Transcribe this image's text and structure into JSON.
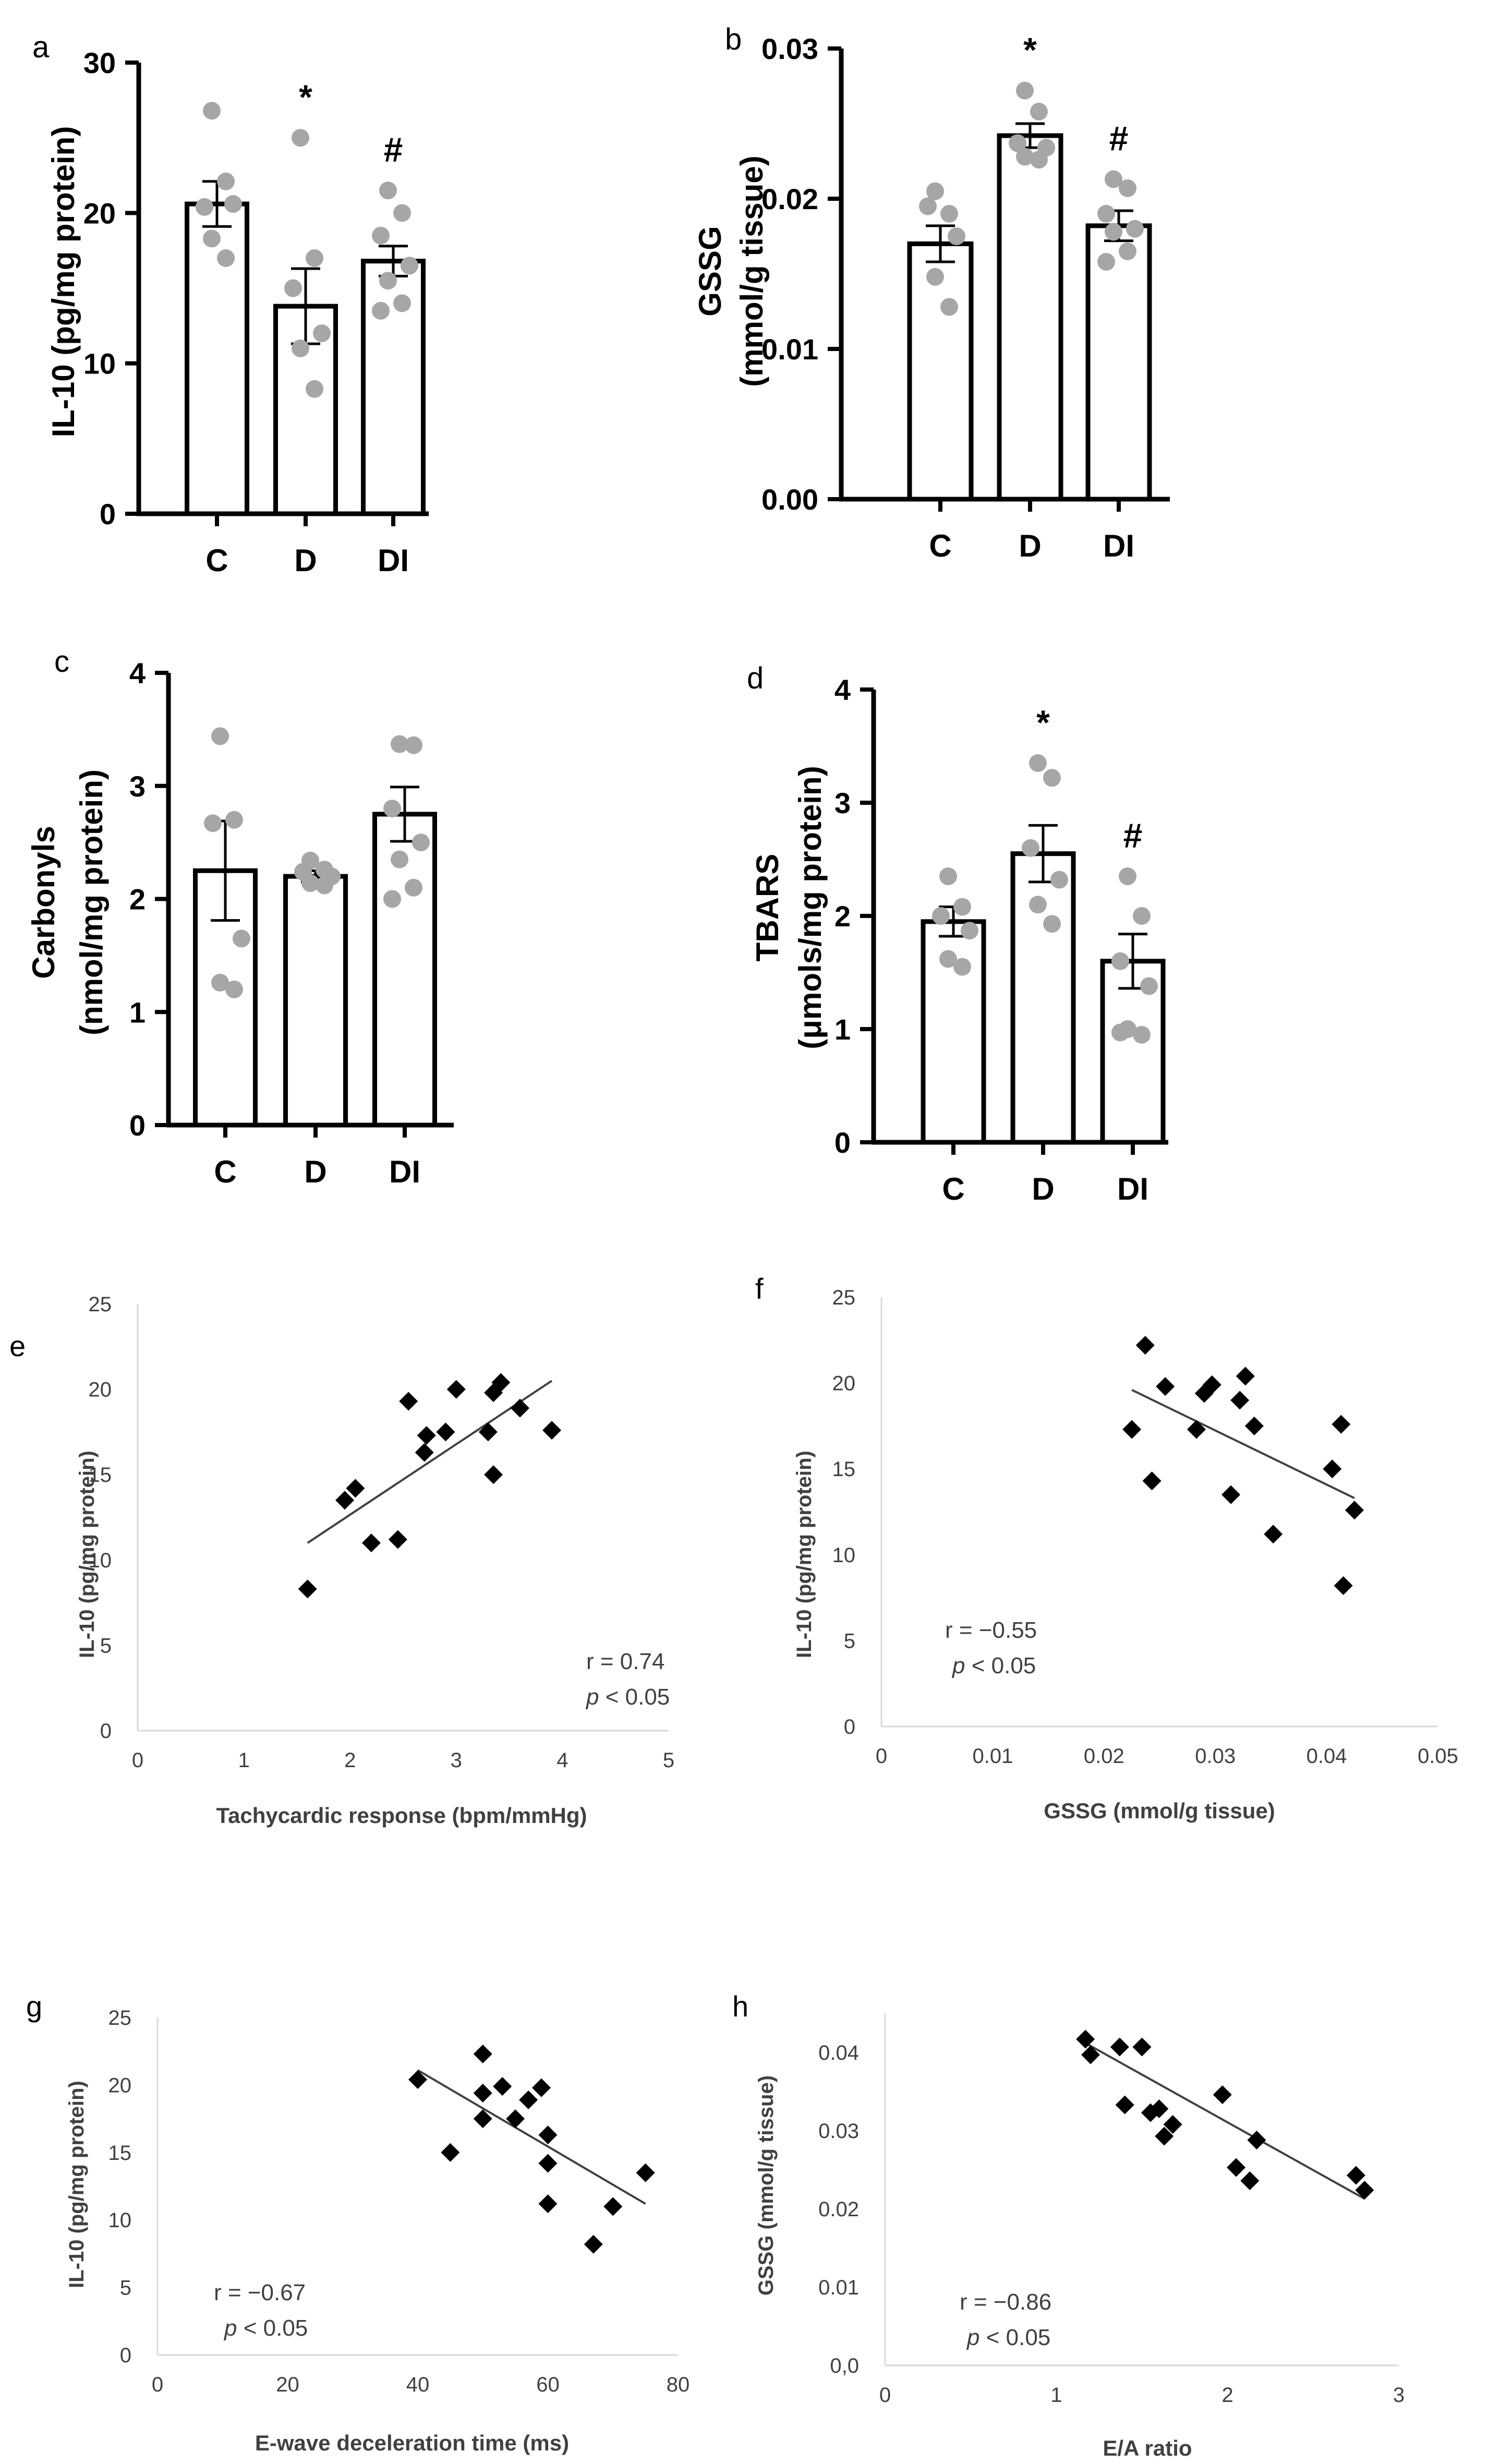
{
  "colors": {
    "axis": "#000000",
    "bar_fill": "#ffffff",
    "bar_stroke": "#000000",
    "dot": "#a6a6a6",
    "scatter_marker": "#000000",
    "trendline": "#404040",
    "scatter_axis": "#d9d9d9",
    "scatter_text": "#404040"
  },
  "chart_data": [
    {
      "panel": "a",
      "type": "bar",
      "ylabel": "IL-10 (pg/mg protein)",
      "categories": [
        "C",
        "D",
        "DI"
      ],
      "values": [
        20.6,
        13.8,
        16.8
      ],
      "sem": [
        1.5,
        2.5,
        1.0
      ],
      "significance": [
        "",
        "*",
        "#"
      ],
      "points": [
        [
          26.8,
          22.1,
          20.4,
          20.6,
          18.3,
          17.0
        ],
        [
          25.0,
          17.0,
          15.0,
          12.0,
          11.0,
          8.3
        ],
        [
          21.5,
          20.0,
          18.5,
          16.5,
          15.5,
          14.0,
          13.5
        ]
      ],
      "ylim": [
        0,
        30
      ],
      "yticks": [
        "0",
        "10",
        "20",
        "30"
      ]
    },
    {
      "panel": "b",
      "type": "bar",
      "ylabel": "GSSG",
      "ylabel2": "(mmol/g tissue)",
      "categories": [
        "C",
        "D",
        "DI"
      ],
      "values": [
        0.017,
        0.0242,
        0.0182
      ],
      "sem": [
        0.0012,
        0.0008,
        0.001
      ],
      "significance": [
        "",
        "*",
        "#"
      ],
      "points": [
        [
          0.0205,
          0.019,
          0.0195,
          0.0175,
          0.0148,
          0.0128
        ],
        [
          0.0272,
          0.0258,
          0.0237,
          0.0234,
          0.0228,
          0.0226
        ],
        [
          0.0213,
          0.0207,
          0.019,
          0.018,
          0.0178,
          0.0165,
          0.0158
        ]
      ],
      "ylim": [
        0,
        0.03
      ],
      "yticks": [
        "0.00",
        "0.01",
        "0.02",
        "0.03"
      ]
    },
    {
      "panel": "c",
      "type": "bar",
      "ylabel": "Carbonyls",
      "ylabel2": "(nmol/mg protein)",
      "categories": [
        "C",
        "D",
        "DI"
      ],
      "values": [
        2.25,
        2.2,
        2.75
      ],
      "sem": [
        0.44,
        0.05,
        0.24
      ],
      "significance": [
        "",
        "",
        ""
      ],
      "points": [
        [
          3.44,
          2.7,
          2.67,
          1.65,
          1.26,
          1.2
        ],
        [
          2.34,
          2.26,
          2.24,
          2.2,
          2.14,
          2.12
        ],
        [
          3.37,
          3.36,
          2.8,
          2.5,
          2.35,
          2.1,
          2.0
        ]
      ],
      "ylim": [
        0,
        4
      ],
      "yticks": [
        "0",
        "1",
        "2",
        "3",
        "4"
      ]
    },
    {
      "panel": "d",
      "type": "bar",
      "ylabel": "TBARS",
      "ylabel2": "(μmols/mg protein)",
      "categories": [
        "C",
        "D",
        "DI"
      ],
      "values": [
        1.95,
        2.55,
        1.6
      ],
      "sem": [
        0.13,
        0.25,
        0.24
      ],
      "significance": [
        "",
        "*",
        "#"
      ],
      "points": [
        [
          2.35,
          2.08,
          2.0,
          1.87,
          1.62,
          1.55
        ],
        [
          3.35,
          3.22,
          2.6,
          2.32,
          2.1,
          1.93
        ],
        [
          2.35,
          2.0,
          1.6,
          1.38,
          1.0,
          0.95,
          0.97
        ]
      ],
      "ylim": [
        0,
        4
      ],
      "yticks": [
        "0",
        "1",
        "2",
        "3",
        "4"
      ]
    },
    {
      "panel": "e",
      "type": "scatter",
      "xlabel": "Tachycardic response (bpm/mmHg)",
      "ylabel": "IL-10 (pg/mg protein)",
      "xlim": [
        0,
        5
      ],
      "ylim": [
        0,
        25
      ],
      "xticks": [
        "0",
        "1",
        "2",
        "3",
        "4",
        "5"
      ],
      "yticks": [
        "0",
        "5",
        "10",
        "15",
        "20",
        "25"
      ],
      "x": [
        1.6,
        1.95,
        2.05,
        2.2,
        2.45,
        2.55,
        2.7,
        2.72,
        2.9,
        3.0,
        3.3,
        3.35,
        3.35,
        3.42,
        3.6,
        3.9
      ],
      "y": [
        8.3,
        13.5,
        14.2,
        11.0,
        11.2,
        19.3,
        16.3,
        17.3,
        17.5,
        20.0,
        17.5,
        15.0,
        19.8,
        20.4,
        18.9,
        17.6
      ],
      "trendline": [
        [
          1.6,
          11.0
        ],
        [
          3.9,
          20.5
        ]
      ],
      "annotation": [
        "r = 0.74",
        "p < 0.05"
      ]
    },
    {
      "panel": "f",
      "type": "scatter",
      "xlabel": "GSSG (mmol/g tissue)",
      "ylabel": "IL-10 (pg/mg protein)",
      "xlim": [
        0,
        0.05
      ],
      "ylim": [
        0,
        25
      ],
      "xticks": [
        "0",
        "0.01",
        "0.02",
        "0.03",
        "0.04",
        "0.05"
      ],
      "yticks": [
        "0",
        "5",
        "10",
        "15",
        "20",
        "25"
      ],
      "x": [
        0.0225,
        0.0237,
        0.0243,
        0.0255,
        0.0283,
        0.029,
        0.0297,
        0.0314,
        0.0322,
        0.0327,
        0.0335,
        0.0352,
        0.0405,
        0.0413,
        0.0415,
        0.0425
      ],
      "y": [
        17.3,
        22.2,
        14.3,
        19.8,
        17.3,
        19.4,
        19.9,
        13.5,
        19.0,
        20.4,
        17.5,
        11.2,
        15.0,
        17.6,
        8.2,
        12.6
      ],
      "trendline": [
        [
          0.0225,
          19.6
        ],
        [
          0.0425,
          13.3
        ]
      ],
      "annotation": [
        "r = −0.55",
        "p < 0.05"
      ]
    },
    {
      "panel": "g",
      "type": "scatter",
      "xlabel": "E-wave deceleration time (ms)",
      "ylabel": "IL-10 (pg/mg protein)",
      "xlim": [
        0,
        80
      ],
      "ylim": [
        0,
        25
      ],
      "xticks": [
        "0",
        "20",
        "40",
        "60",
        "80"
      ],
      "yticks": [
        "0",
        "5",
        "10",
        "15",
        "20",
        "25"
      ],
      "x": [
        40,
        45,
        50,
        50,
        50,
        53,
        55,
        57,
        59,
        60,
        60,
        60,
        67,
        70,
        75
      ],
      "y": [
        20.4,
        15.0,
        22.3,
        19.4,
        17.5,
        19.9,
        17.5,
        18.9,
        19.8,
        16.3,
        14.2,
        11.2,
        8.2,
        11.0,
        13.5
      ],
      "trendline": [
        [
          40,
          21.1
        ],
        [
          75,
          11.2
        ]
      ],
      "annotation": [
        "r =  −0.67",
        "p < 0.05"
      ]
    },
    {
      "panel": "h",
      "type": "scatter",
      "xlabel": "E/A ratio",
      "ylabel": "GSSG (mmol/g tissue)",
      "xlim": [
        0,
        3
      ],
      "ylim": [
        0,
        0.045
      ],
      "xticks": [
        "0",
        "1",
        "2",
        "3"
      ],
      "yticks": [
        "0,0",
        "0.01",
        "0.02",
        "0.03",
        "0.04"
      ],
      "x": [
        1.17,
        1.2,
        1.37,
        1.4,
        1.5,
        1.55,
        1.6,
        1.63,
        1.68,
        1.97,
        2.05,
        2.13,
        2.17,
        2.75,
        2.8
      ],
      "y": [
        0.0417,
        0.0397,
        0.0407,
        0.0333,
        0.0407,
        0.0323,
        0.0328,
        0.0293,
        0.0308,
        0.0346,
        0.0253,
        0.0236,
        0.0288,
        0.0243,
        0.0224
      ],
      "trendline": [
        [
          1.17,
          0.0412
        ],
        [
          2.8,
          0.0213
        ]
      ],
      "annotation": [
        "r = −0.86",
        "p < 0.05"
      ]
    }
  ],
  "panels": [
    {
      "letter": "a",
      "ylabel": "IL-10 (pg/mg protein)",
      "ylabel2": "",
      "annotation_r": "",
      "annotation_p": "",
      "xlabel": ""
    },
    {
      "letter": "b",
      "ylabel": "GSSG",
      "ylabel2": "(mmol/g tissue)",
      "annotation_r": "",
      "annotation_p": "",
      "xlabel": ""
    },
    {
      "letter": "c",
      "ylabel": "Carbonyls",
      "ylabel2": "(nmol/mg protein)",
      "annotation_r": "",
      "annotation_p": "",
      "xlabel": ""
    },
    {
      "letter": "d",
      "ylabel": "TBARS",
      "ylabel2": "(μmols/mg protein)",
      "annotation_r": "",
      "annotation_p": "",
      "xlabel": ""
    },
    {
      "letter": "e",
      "ylabel": "IL-10 (pg/mg protein)",
      "ylabel2": "",
      "annotation_r": "r = 0.74",
      "annotation_p": " < 0.05",
      "xlabel": "Tachycardic response (bpm/mmHg)"
    },
    {
      "letter": "f",
      "ylabel": "IL-10 (pg/mg protein)",
      "ylabel2": "",
      "annotation_r": "r = −0.55",
      "annotation_p": " < 0.05",
      "xlabel": "GSSG (mmol/g tissue)"
    },
    {
      "letter": "g",
      "ylabel": "IL-10 (pg/mg protein)",
      "ylabel2": "",
      "annotation_r": "r =  −0.67",
      "annotation_p": " < 0.05",
      "xlabel": "E-wave deceleration time (ms)"
    },
    {
      "letter": "h",
      "ylabel": "GSSG (mmol/g tissue)",
      "ylabel2": "",
      "annotation_r": "r = −0.86",
      "annotation_p": " < 0.05",
      "xlabel": "E/A ratio"
    }
  ],
  "p_symbol": "p"
}
